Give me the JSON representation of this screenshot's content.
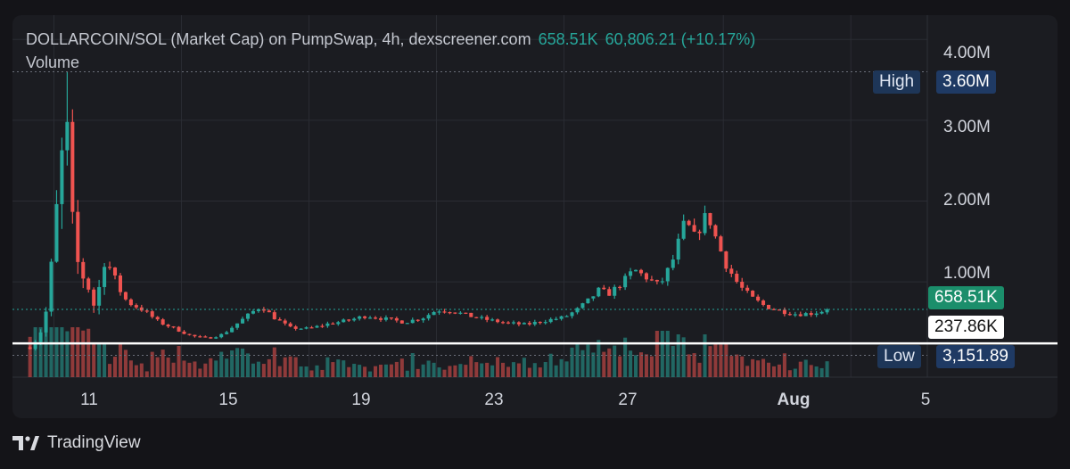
{
  "legend": {
    "title": "DOLLARCOIN/SOL (Market Cap) on PumpSwap, 4h, dexscreener.com",
    "close": "658.51K",
    "change": "60,806.21 (+10.17%)",
    "volume_label": "Volume"
  },
  "markers": {
    "high_label": "High",
    "high_value": "3.60M",
    "low_label": "Low",
    "low_value": "3,151.89",
    "price_value": "658.51K",
    "crosshair_value": "237.86K"
  },
  "footer": {
    "brand": "TradingView"
  },
  "colors": {
    "up": "#26a69a",
    "down": "#ef5350",
    "background": "#1b1c21",
    "grid": "#2a2c33"
  },
  "chart_data": {
    "type": "candlestick",
    "title": "DOLLARCOIN/SOL (Market Cap) on PumpSwap, 4h, dexscreener.com",
    "y_axis": {
      "ticks": [
        "1.00M",
        "2.00M",
        "3.00M",
        "4.00M"
      ],
      "tick_values": [
        1000000,
        2000000,
        3000000,
        4000000
      ],
      "ylim": [
        -180000,
        4300000
      ]
    },
    "x_axis": {
      "ticks": [
        "11",
        "15",
        "19",
        "23",
        "27",
        "Aug",
        "5"
      ],
      "tick_days": [
        11,
        15,
        19,
        23,
        27,
        32,
        36
      ],
      "xlim": [
        9.7,
        38.4
      ]
    },
    "anchors": [
      [
        10.3,
        190000
      ],
      [
        10.6,
        400000
      ],
      [
        10.8,
        700000
      ],
      [
        11.0,
        1500000
      ],
      [
        11.2,
        2400000
      ],
      [
        11.4,
        2900000
      ],
      [
        11.6,
        1600000
      ],
      [
        11.8,
        1100000
      ],
      [
        12.0,
        1050000
      ],
      [
        12.3,
        650000
      ],
      [
        12.6,
        1350000
      ],
      [
        12.9,
        1000000
      ],
      [
        13.3,
        750000
      ],
      [
        13.8,
        650000
      ],
      [
        14.3,
        500000
      ],
      [
        14.8,
        420000
      ],
      [
        15.3,
        330000
      ],
      [
        15.8,
        300000
      ],
      [
        16.3,
        350000
      ],
      [
        16.8,
        500000
      ],
      [
        17.2,
        620000
      ],
      [
        17.5,
        700000
      ],
      [
        17.9,
        560000
      ],
      [
        18.4,
        430000
      ],
      [
        19.0,
        420000
      ],
      [
        19.6,
        480000
      ],
      [
        20.2,
        520000
      ],
      [
        20.8,
        580000
      ],
      [
        21.4,
        540000
      ],
      [
        22.0,
        500000
      ],
      [
        22.6,
        560000
      ],
      [
        23.0,
        650000
      ],
      [
        23.5,
        640000
      ],
      [
        24.0,
        580000
      ],
      [
        24.6,
        530000
      ],
      [
        25.2,
        490000
      ],
      [
        25.8,
        470000
      ],
      [
        26.4,
        520000
      ],
      [
        27.0,
        560000
      ],
      [
        27.4,
        650000
      ],
      [
        27.8,
        780000
      ],
      [
        28.1,
        900000
      ],
      [
        28.4,
        850000
      ],
      [
        28.8,
        980000
      ],
      [
        29.2,
        1150000
      ],
      [
        29.6,
        1050000
      ],
      [
        30.0,
        950000
      ],
      [
        30.4,
        1250000
      ],
      [
        30.8,
        1750000
      ],
      [
        31.1,
        1550000
      ],
      [
        31.5,
        1850000
      ],
      [
        31.8,
        1500000
      ],
      [
        32.1,
        1200000
      ],
      [
        32.5,
        950000
      ],
      [
        32.9,
        800000
      ],
      [
        33.3,
        700000
      ],
      [
        33.8,
        640000
      ],
      [
        34.3,
        600000
      ],
      [
        34.8,
        610000
      ],
      [
        35.3,
        658510
      ]
    ],
    "candle_range": {
      "start_day": 10.25,
      "end_day": 35.3,
      "step_days": 0.1667
    },
    "high": {
      "day": 11.35,
      "value": 3600000
    },
    "low": {
      "value": 3151.89
    },
    "last_close": 658510,
    "change_abs": 60806.21,
    "change_pct": 10.17,
    "crosshair_value": 237860,
    "volume_ref_line": 90000
  }
}
